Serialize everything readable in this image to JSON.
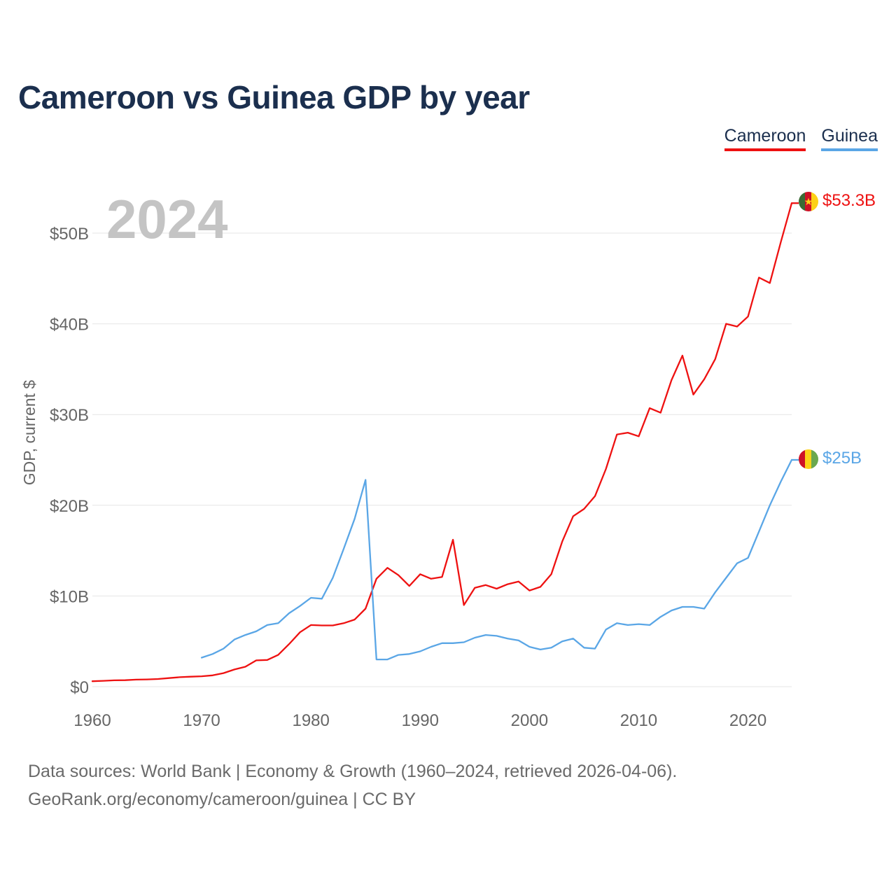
{
  "title": "Cameroon vs Guinea GDP by year",
  "legend": {
    "cameroon": "Cameroon",
    "guinea": "Guinea"
  },
  "year_overlay": "2024",
  "end_labels": {
    "cameroon": "$53.3B",
    "guinea": "$25B"
  },
  "source": {
    "line1": "Data sources: World Bank | Economy & Growth (1960–2024, retrieved 2026-04-06).",
    "line2": "GeoRank.org/economy/cameroon/guinea | CC BY"
  },
  "colors": {
    "cameroon": "#ee1111",
    "guinea": "#5aa6e6",
    "grid": "#e6e6e6",
    "flag_red": "#ce1126",
    "flag_yellow": "#fcd116",
    "flag_green_cm": "#3a6b35",
    "flag_green_gn": "#6aa84f"
  },
  "chart_data": {
    "type": "line",
    "title": "Cameroon vs Guinea GDP by year",
    "xlabel": "",
    "ylabel": "GDP, current $",
    "xlim": [
      1960,
      2024
    ],
    "ylim": [
      0,
      55
    ],
    "x_ticks": [
      1960,
      1970,
      1980,
      1990,
      2000,
      2010,
      2020
    ],
    "x_tick_labels": [
      "1960",
      "1970",
      "1980",
      "1990",
      "2000",
      "2010",
      "2020"
    ],
    "y_ticks": [
      0,
      10,
      20,
      30,
      40,
      50
    ],
    "y_tick_labels": [
      "$0",
      "$10B",
      "$20B",
      "$30B",
      "$40B",
      "$50B"
    ],
    "units": "billions of current US$",
    "series": [
      {
        "name": "Cameroon",
        "color": "#ee1111",
        "x": [
          1960,
          1961,
          1962,
          1963,
          1964,
          1965,
          1966,
          1967,
          1968,
          1969,
          1970,
          1971,
          1972,
          1973,
          1974,
          1975,
          1976,
          1977,
          1978,
          1979,
          1980,
          1981,
          1982,
          1983,
          1984,
          1985,
          1986,
          1987,
          1988,
          1989,
          1990,
          1991,
          1992,
          1993,
          1994,
          1995,
          1996,
          1997,
          1998,
          1999,
          2000,
          2001,
          2002,
          2003,
          2004,
          2005,
          2006,
          2007,
          2008,
          2009,
          2010,
          2011,
          2012,
          2013,
          2014,
          2015,
          2016,
          2017,
          2018,
          2019,
          2020,
          2021,
          2022,
          2023,
          2024
        ],
        "values": [
          0.6,
          0.65,
          0.7,
          0.72,
          0.78,
          0.8,
          0.85,
          0.95,
          1.05,
          1.1,
          1.15,
          1.25,
          1.5,
          1.9,
          2.2,
          2.9,
          2.95,
          3.5,
          4.7,
          6.0,
          6.8,
          6.75,
          6.75,
          7.0,
          7.4,
          8.6,
          11.9,
          13.1,
          12.3,
          11.1,
          12.4,
          11.9,
          12.1,
          16.2,
          9.0,
          10.9,
          11.2,
          10.8,
          11.3,
          11.6,
          10.6,
          11.0,
          12.4,
          16.0,
          18.8,
          19.6,
          21.0,
          24.0,
          27.8,
          28.0,
          27.6,
          30.7,
          30.2,
          33.8,
          36.5,
          32.2,
          33.9,
          36.1,
          40.0,
          39.7,
          40.8,
          45.1,
          44.5,
          49.0,
          53.3
        ]
      },
      {
        "name": "Guinea",
        "color": "#5aa6e6",
        "x": [
          1970,
          1971,
          1972,
          1973,
          1974,
          1975,
          1976,
          1977,
          1978,
          1979,
          1980,
          1981,
          1982,
          1983,
          1984,
          1985,
          1986,
          1987,
          1988,
          1989,
          1990,
          1991,
          1992,
          1993,
          1994,
          1995,
          1996,
          1997,
          1998,
          1999,
          2000,
          2001,
          2002,
          2003,
          2004,
          2005,
          2006,
          2007,
          2008,
          2009,
          2010,
          2011,
          2012,
          2013,
          2014,
          2015,
          2016,
          2017,
          2018,
          2019,
          2020,
          2021,
          2022,
          2023,
          2024
        ],
        "values": [
          3.2,
          3.6,
          4.2,
          5.2,
          5.7,
          6.1,
          6.8,
          7.0,
          8.1,
          8.9,
          9.8,
          9.7,
          12.0,
          15.2,
          18.5,
          22.8,
          3.0,
          3.0,
          3.5,
          3.6,
          3.9,
          4.4,
          4.8,
          4.8,
          4.9,
          5.4,
          5.7,
          5.6,
          5.3,
          5.1,
          4.4,
          4.1,
          4.3,
          5.0,
          5.3,
          4.3,
          4.2,
          6.3,
          7.0,
          6.8,
          6.9,
          6.8,
          7.7,
          8.4,
          8.8,
          8.8,
          8.6,
          10.4,
          12.0,
          13.6,
          14.2,
          17.1,
          20.0,
          22.6,
          25.0
        ]
      }
    ]
  }
}
